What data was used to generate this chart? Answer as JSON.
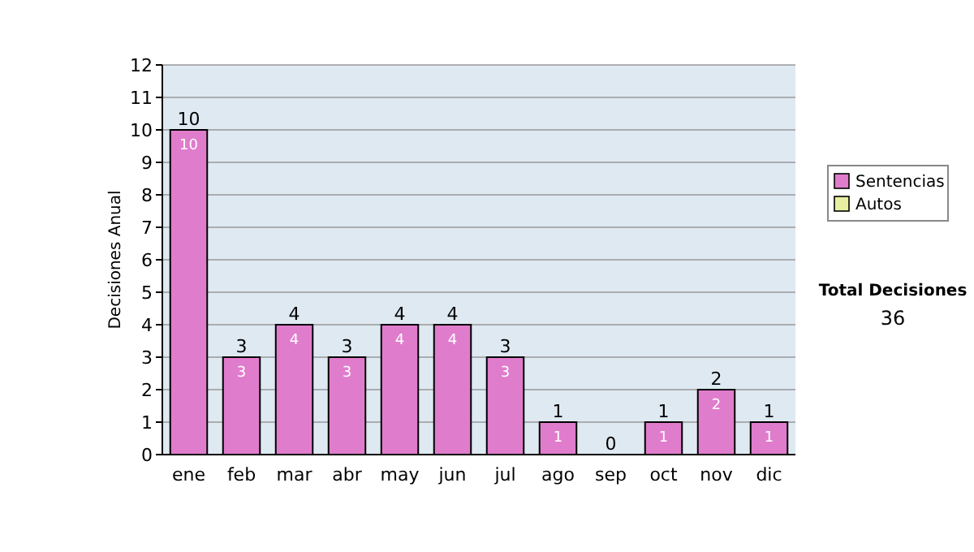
{
  "chart_data": {
    "type": "bar",
    "stacked": true,
    "ylabel": "Decisiones Anual",
    "categories": [
      "ene",
      "feb",
      "mar",
      "abr",
      "may",
      "jun",
      "jul",
      "ago",
      "sep",
      "oct",
      "nov",
      "dic"
    ],
    "series": [
      {
        "name": "Sentencias",
        "color": "#e07ccc",
        "values": [
          10,
          3,
          4,
          3,
          4,
          4,
          3,
          1,
          0,
          1,
          2,
          1
        ],
        "value_labels": [
          "10",
          "3",
          "4",
          "3",
          "4",
          "4",
          "3",
          "1",
          null,
          "1",
          "2",
          "1"
        ]
      },
      {
        "name": "Autos",
        "color": "#e6f0a0",
        "values": [
          0,
          0,
          0,
          0,
          0,
          0,
          0,
          0,
          0,
          0,
          0,
          0
        ]
      }
    ],
    "totals": [
      "10",
      "3",
      "4",
      "3",
      "4",
      "4",
      "3",
      "1",
      "0",
      "1",
      "2",
      "1"
    ],
    "ylim": [
      0,
      12
    ],
    "yticks": [
      0,
      1,
      2,
      3,
      4,
      5,
      6,
      7,
      8,
      9,
      10,
      11,
      12
    ],
    "grid": "y",
    "legend": "right",
    "annotations": [
      "Total Decisiones",
      "36"
    ]
  }
}
